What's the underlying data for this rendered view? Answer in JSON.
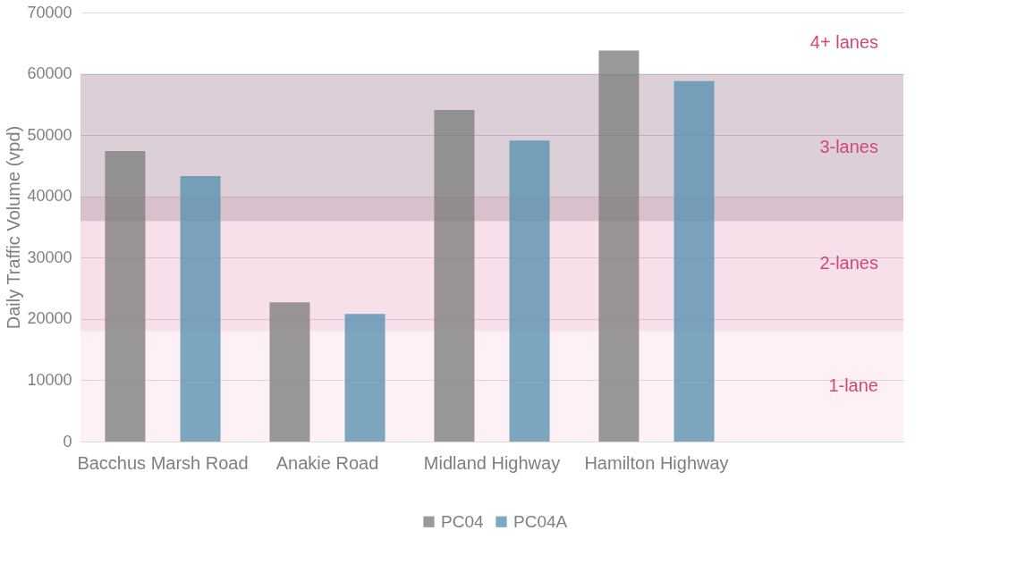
{
  "chart_data": {
    "type": "bar",
    "ylabel": "Daily Traffic Volume (vpd)",
    "categories": [
      "Bacchus Marsh Road",
      "Anakie Road",
      "Midland Highway",
      "Hamilton Highway",
      null
    ],
    "series": [
      {
        "name": "PC04",
        "color": "#7f7f7f",
        "values": [
          47400,
          22700,
          54100,
          63800,
          null
        ]
      },
      {
        "name": "PC04A",
        "color": "#5b92b0",
        "values": [
          43300,
          20800,
          49100,
          58800,
          null
        ]
      }
    ],
    "ylim": [
      0,
      70000
    ],
    "yticks": [
      0,
      10000,
      20000,
      30000,
      40000,
      50000,
      60000,
      70000
    ],
    "bands": [
      {
        "axis": "y",
        "from": 0,
        "to": 18000,
        "label": "1-lane",
        "color": "#fbe3ec"
      },
      {
        "axis": "y",
        "from": 18000,
        "to": 40000,
        "label": "2-lanes",
        "color": "#efc1d5"
      },
      {
        "axis": "y",
        "from": 36000,
        "to": 60000,
        "label": "3-lanes",
        "color": "#b99fb0"
      },
      {
        "axis": "y",
        "from": 60000,
        "to": 70000,
        "label": "4+ lanes",
        "color": "#ffffff"
      }
    ],
    "grid": "y",
    "legend": "bottom"
  }
}
